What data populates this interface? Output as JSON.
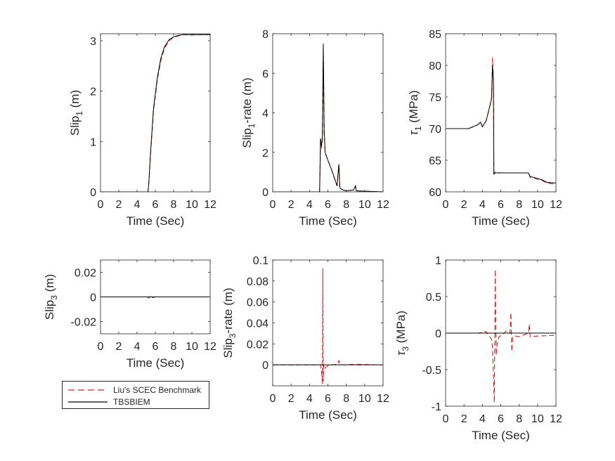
{
  "figure": {
    "xlabel": "Time (Sec)",
    "legend": [
      {
        "label": "Liu's SCEC Benchmark",
        "color": "#d62020",
        "style": "dashed"
      },
      {
        "label": "TBSBIEM",
        "color": "#000000",
        "style": "solid"
      }
    ]
  },
  "chart_data": [
    {
      "type": "line",
      "ylabel_main": "Slip",
      "ylabel_sub": "1",
      "ylabel_rest": " (m)",
      "xlim": [
        0,
        12
      ],
      "ylim": [
        0,
        3.14
      ],
      "xticks": [
        0,
        2,
        4,
        6,
        8,
        10,
        12
      ],
      "yticks": [
        0,
        1,
        2,
        3
      ],
      "series": [
        {
          "name": "Liu's SCEC Benchmark",
          "x": [
            0,
            5.2,
            5.3,
            5.5,
            5.8,
            6.2,
            6.6,
            7.0,
            7.5,
            8.0,
            8.6,
            9.0,
            12
          ],
          "y": [
            0,
            0,
            0.2,
            0.8,
            1.6,
            2.2,
            2.6,
            2.85,
            3.0,
            3.07,
            3.1,
            3.12,
            3.12
          ]
        },
        {
          "name": "TBSBIEM",
          "x": [
            0,
            5.2,
            5.3,
            5.5,
            5.8,
            6.2,
            6.6,
            7.0,
            7.5,
            8.0,
            8.6,
            9.0,
            12
          ],
          "y": [
            0,
            0,
            0.22,
            0.85,
            1.65,
            2.25,
            2.65,
            2.88,
            3.02,
            3.08,
            3.11,
            3.12,
            3.12
          ]
        }
      ]
    },
    {
      "type": "line",
      "ylabel_main": "Slip",
      "ylabel_sub": "1",
      "ylabel_rest": "-rate (m)",
      "xlim": [
        0,
        12
      ],
      "ylim": [
        0,
        8
      ],
      "xticks": [
        0,
        2,
        4,
        6,
        8,
        10,
        12
      ],
      "yticks": [
        0,
        2,
        4,
        6,
        8
      ],
      "series": [
        {
          "name": "Liu's SCEC Benchmark",
          "x": [
            0,
            5.1,
            5.2,
            5.3,
            5.4,
            5.5,
            5.6,
            5.7,
            6.0,
            6.5,
            7.0,
            7.1,
            7.2,
            7.3,
            7.6,
            8.0,
            8.8,
            9.0,
            9.1,
            12
          ],
          "y": [
            0,
            0,
            2.5,
            2.2,
            2.6,
            6.9,
            3.0,
            2.0,
            1.6,
            1.0,
            0.3,
            0.9,
            1.3,
            0.2,
            0.1,
            0.05,
            0.1,
            0.3,
            0.05,
            0
          ]
        },
        {
          "name": "TBSBIEM",
          "x": [
            0,
            5.1,
            5.2,
            5.3,
            5.4,
            5.5,
            5.6,
            5.7,
            6.0,
            6.5,
            7.0,
            7.1,
            7.2,
            7.3,
            7.6,
            8.0,
            8.8,
            9.0,
            9.1,
            12
          ],
          "y": [
            0,
            0,
            2.7,
            2.3,
            2.8,
            7.5,
            3.1,
            2.0,
            1.6,
            1.0,
            0.3,
            0.9,
            1.4,
            0.2,
            0.1,
            0.05,
            0.1,
            0.3,
            0.05,
            0
          ]
        }
      ]
    },
    {
      "type": "line",
      "ylabel_main": "τ",
      "ylabel_sub": "1",
      "ylabel_rest": " (MPa)",
      "xlim": [
        0,
        12
      ],
      "ylim": [
        60,
        85
      ],
      "xticks": [
        0,
        2,
        4,
        6,
        8,
        10,
        12
      ],
      "yticks": [
        60,
        65,
        70,
        75,
        80,
        85
      ],
      "series": [
        {
          "name": "Liu's SCEC Benchmark",
          "x": [
            0,
            2.5,
            3.5,
            3.8,
            4.0,
            4.4,
            4.8,
            5.0,
            5.1,
            5.2,
            5.25,
            5.4,
            6.0,
            9.0,
            9.2,
            9.6,
            10.0,
            10.5,
            11.0,
            12
          ],
          "y": [
            70,
            70,
            70.6,
            71.0,
            70.3,
            71.2,
            73.5,
            74.8,
            81.2,
            78.0,
            63.0,
            63.1,
            63.0,
            63.0,
            62.3,
            62.2,
            62.0,
            61.8,
            61.4,
            61.2
          ]
        },
        {
          "name": "TBSBIEM",
          "x": [
            0,
            2.5,
            3.5,
            3.8,
            4.0,
            4.4,
            4.8,
            5.0,
            5.1,
            5.2,
            5.25,
            5.4,
            6.0,
            9.0,
            9.2,
            9.6,
            10.0,
            10.5,
            11.0,
            12
          ],
          "y": [
            70,
            70,
            70.6,
            71.0,
            70.3,
            71.2,
            73.5,
            74.8,
            80.0,
            77.5,
            62.8,
            63.0,
            63.0,
            63.0,
            62.4,
            62.3,
            62.1,
            61.9,
            61.5,
            61.4
          ]
        }
      ]
    },
    {
      "type": "line",
      "ylabel_main": "Slip",
      "ylabel_sub": "3",
      "ylabel_rest": " (m)",
      "xlim": [
        0,
        12
      ],
      "ylim": [
        -0.03,
        0.03
      ],
      "xticks": [
        0,
        2,
        4,
        6,
        8,
        10,
        12
      ],
      "yticks": [
        -0.02,
        0,
        0.02
      ],
      "ytick_labels": [
        "-0.02",
        "0",
        "0.02"
      ],
      "series": [
        {
          "name": "Liu's SCEC Benchmark",
          "x": [
            0,
            5.1,
            5.3,
            5.5,
            5.7,
            6.0,
            12
          ],
          "y": [
            0,
            0,
            -0.001,
            0.0012,
            -0.0008,
            0,
            0
          ]
        },
        {
          "name": "TBSBIEM",
          "x": [
            0,
            12
          ],
          "y": [
            0,
            0
          ]
        }
      ]
    },
    {
      "type": "line",
      "ylabel_main": "Slip",
      "ylabel_sub": "3",
      "ylabel_rest": "-rate (m)",
      "xlim": [
        0,
        12
      ],
      "ylim": [
        -0.02,
        0.1
      ],
      "xticks": [
        0,
        2,
        4,
        6,
        8,
        10,
        12
      ],
      "yticks": [
        0,
        0.02,
        0.04,
        0.06,
        0.08,
        0.1
      ],
      "ytick_labels": [
        "0",
        "0.02",
        "0.04",
        "0.06",
        "0.08",
        "0.1"
      ],
      "series": [
        {
          "name": "Liu's SCEC Benchmark",
          "x": [
            0,
            5.2,
            5.3,
            5.4,
            5.45,
            5.5,
            5.55,
            5.6,
            5.8,
            6.2,
            6.6,
            7.0,
            7.2,
            7.3,
            9.0,
            12
          ],
          "y": [
            0,
            0,
            -0.005,
            -0.018,
            0.092,
            -0.016,
            0.0,
            -0.004,
            -0.002,
            0.0,
            0.0,
            0.001,
            0.004,
            0.0,
            0.0005,
            0
          ]
        },
        {
          "name": "TBSBIEM",
          "x": [
            0,
            12
          ],
          "y": [
            0,
            0
          ]
        }
      ]
    },
    {
      "type": "line",
      "ylabel_main": "τ",
      "ylabel_sub": "3",
      "ylabel_rest": " (MPa)",
      "xlim": [
        0,
        12
      ],
      "ylim": [
        -1,
        1
      ],
      "xticks": [
        0,
        2,
        4,
        6,
        8,
        10,
        12
      ],
      "yticks": [
        -1,
        -0.5,
        0,
        0.5,
        1
      ],
      "ytick_labels": [
        "-1",
        "-0.5",
        "0",
        "0.5",
        "1"
      ],
      "series": [
        {
          "name": "Liu's SCEC Benchmark",
          "x": [
            0,
            3.5,
            4.0,
            4.4,
            4.8,
            5.0,
            5.1,
            5.3,
            5.4,
            5.5,
            5.6,
            5.8,
            6.2,
            6.6,
            7.0,
            7.1,
            7.2,
            7.3,
            7.6,
            8.0,
            9.0,
            9.1,
            9.2,
            10.0,
            12
          ],
          "y": [
            0,
            0,
            0.01,
            0.02,
            -0.05,
            -0.08,
            -0.2,
            -0.95,
            0.87,
            -0.3,
            -0.15,
            -0.05,
            -0.02,
            0.03,
            0.0,
            0.28,
            -0.25,
            -0.05,
            -0.04,
            -0.05,
            0.0,
            0.12,
            -0.05,
            -0.04,
            -0.03
          ]
        },
        {
          "name": "TBSBIEM",
          "x": [
            0,
            12
          ],
          "y": [
            0,
            0
          ]
        }
      ]
    }
  ]
}
